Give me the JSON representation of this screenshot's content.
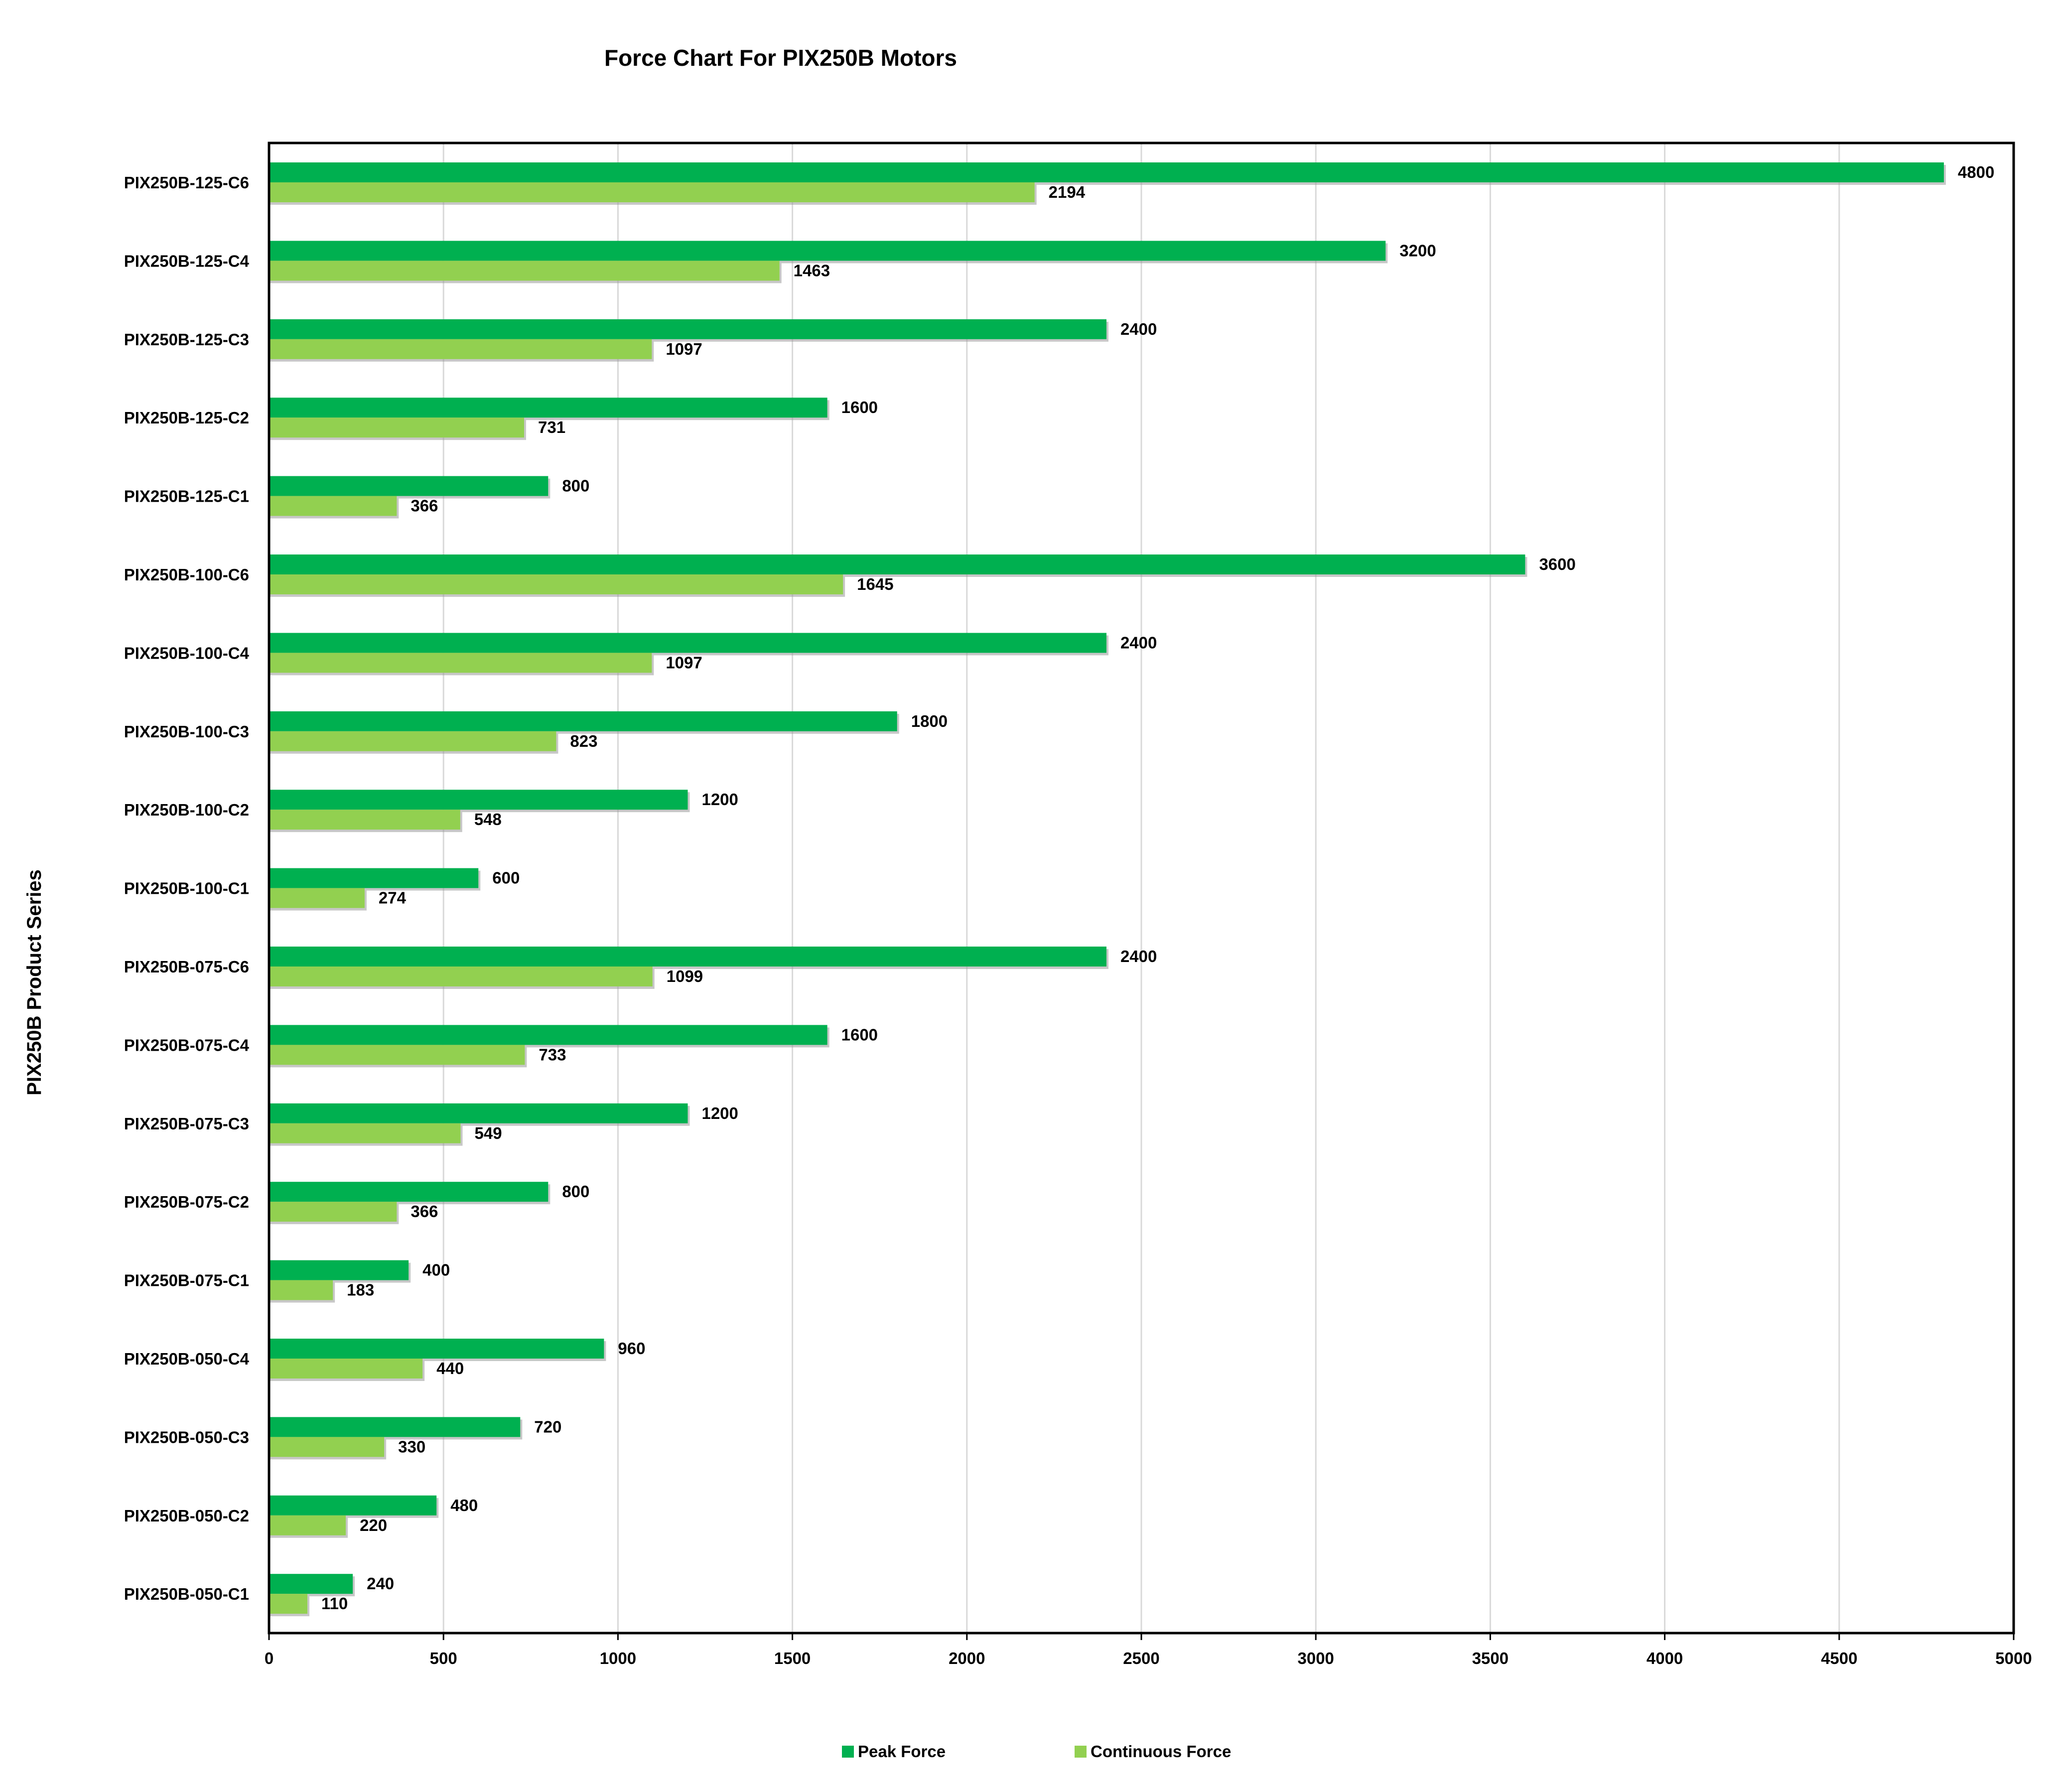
{
  "chart_data": {
    "type": "bar",
    "orientation": "horizontal",
    "title": "Force Chart For PIX250B Motors",
    "ylabel": "PIX250B Product Series",
    "xlabel": "",
    "xlim": [
      0,
      5000
    ],
    "xticks": [
      0,
      500,
      1000,
      1500,
      2000,
      2500,
      3000,
      3500,
      4000,
      4500,
      5000
    ],
    "grid": "vertical",
    "legend_position": "bottom",
    "colors": {
      "peak": "#00b050",
      "continuous": "#92d050",
      "gridline": "#d9d9d9",
      "frame": "#000000"
    },
    "categories": [
      "PIX250B-125-C6",
      "PIX250B-125-C4",
      "PIX250B-125-C3",
      "PIX250B-125-C2",
      "PIX250B-125-C1",
      "PIX250B-100-C6",
      "PIX250B-100-C4",
      "PIX250B-100-C3",
      "PIX250B-100-C2",
      "PIX250B-100-C1",
      "PIX250B-075-C6",
      "PIX250B-075-C4",
      "PIX250B-075-C3",
      "PIX250B-075-C2",
      "PIX250B-075-C1",
      "PIX250B-050-C4",
      "PIX250B-050-C3",
      "PIX250B-050-C2",
      "PIX250B-050-C1"
    ],
    "series": [
      {
        "name": "Peak Force",
        "values": [
          4800,
          3200,
          2400,
          1600,
          800,
          3600,
          2400,
          1800,
          1200,
          600,
          2400,
          1600,
          1200,
          800,
          400,
          960,
          720,
          480,
          240
        ]
      },
      {
        "name": "Continuous Force",
        "values": [
          2194,
          1463,
          1097,
          731,
          366,
          1645,
          1097,
          823,
          548,
          274,
          1099,
          733,
          549,
          366,
          183,
          440,
          330,
          220,
          110
        ]
      }
    ]
  }
}
